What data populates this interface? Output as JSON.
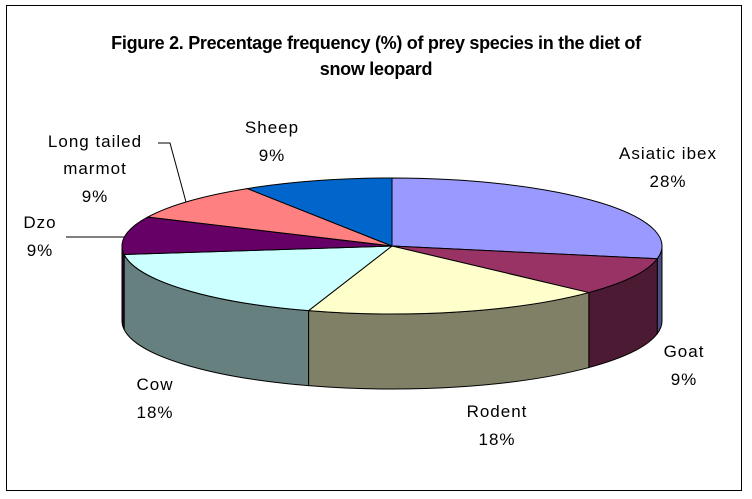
{
  "chart_data": {
    "type": "pie3d",
    "title": "Figure 2. Precentage frequency (%) of prey species in the diet of snow leopard",
    "categories": [
      "Asiatic ibex",
      "Goat",
      "Rodent",
      "Cow",
      "Dzo",
      "Long tailed marmot",
      "Sheep"
    ],
    "values": [
      28,
      9,
      18,
      18,
      9,
      9,
      9
    ],
    "value_labels": [
      "28%",
      "9%",
      "18%",
      "18%",
      "9%",
      "9%",
      "9%"
    ],
    "colors": [
      "#9999ff",
      "#993366",
      "#ffffcc",
      "#ccffff",
      "#660066",
      "#ff8080",
      "#0066cc"
    ]
  }
}
